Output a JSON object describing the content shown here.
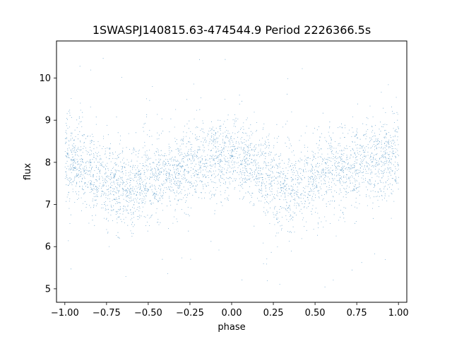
{
  "chart_data": {
    "type": "scatter",
    "title": "1SWASPJ140815.63-474544.9 Period 2226366.5s",
    "xlabel": "phase",
    "ylabel": "flux",
    "xlim": [
      -1.05,
      1.05
    ],
    "ylim": [
      4.68,
      10.88
    ],
    "x_ticks": [
      -1.0,
      -0.75,
      -0.5,
      -0.25,
      0.0,
      0.25,
      0.5,
      0.75,
      1.0
    ],
    "x_tick_labels": [
      "−1.00",
      "−0.75",
      "−0.50",
      "−0.25",
      "0.00",
      "0.25",
      "0.50",
      "0.75",
      "1.00"
    ],
    "y_ticks": [
      5,
      6,
      7,
      8,
      9,
      10
    ],
    "y_tick_labels": [
      "5",
      "6",
      "7",
      "8",
      "9",
      "10"
    ],
    "grid": false,
    "legend": "none",
    "marker_color": "#1f77b4",
    "series": [
      {
        "phase_range": [
          -1.0,
          1.0
        ],
        "approx_point_count": 12000,
        "trend_x": [
          -1.0,
          -0.9,
          -0.8,
          -0.7,
          -0.6,
          -0.5,
          -0.4,
          -0.3,
          -0.2,
          -0.1,
          0.0,
          0.1,
          0.2,
          0.3,
          0.4,
          0.5,
          0.6,
          0.7,
          0.8,
          0.9,
          1.0
        ],
        "trend_y": [
          8.1,
          7.95,
          7.7,
          7.45,
          7.45,
          7.6,
          7.75,
          7.85,
          8.0,
          8.1,
          8.1,
          7.95,
          7.7,
          7.45,
          7.45,
          7.6,
          7.75,
          7.85,
          8.0,
          8.1,
          8.1
        ],
        "scatter_sd": 0.45,
        "outlier_range": [
          4.95,
          10.6
        ]
      }
    ]
  }
}
